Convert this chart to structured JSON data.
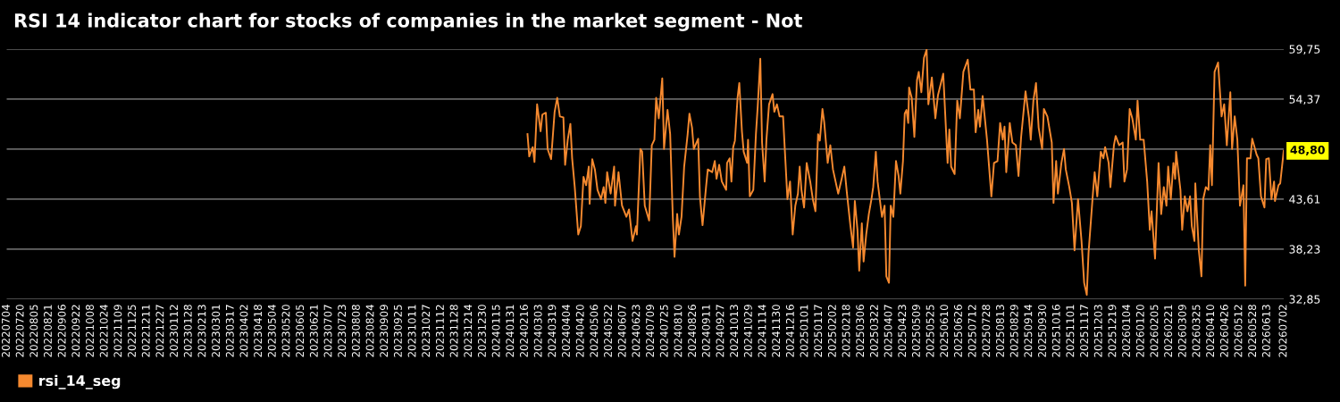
{
  "chart_data": {
    "type": "line",
    "title": "RSI 14 indicator chart for stocks of companies in the market segment - Not",
    "series": [
      {
        "name": "rsi_14_seg",
        "color": "#f5892f",
        "x": [
          "2024-02-19",
          "2024-02-21",
          "2024-02-25",
          "2024-02-27",
          "2024-03-01",
          "2024-03-05",
          "2024-03-07",
          "2024-03-11",
          "2024-03-13",
          "2024-03-17",
          "2024-03-21",
          "2024-03-24",
          "2024-03-27",
          "2024-03-31",
          "2024-04-02",
          "2024-04-05",
          "2024-04-08",
          "2024-04-10",
          "2024-04-13",
          "2024-04-17",
          "2024-04-20",
          "2024-04-23",
          "2024-04-26",
          "2024-04-29",
          "2024-04-30",
          "2024-05-03",
          "2024-05-06",
          "2024-05-09",
          "2024-05-13",
          "2024-05-16",
          "2024-05-18",
          "2024-05-20",
          "2024-05-24",
          "2024-05-28",
          "2024-05-29",
          "2024-06-02",
          "2024-06-06",
          "2024-06-11",
          "2024-06-14",
          "2024-06-18",
          "2024-06-22",
          "2024-06-23",
          "2024-06-27",
          "2024-06-29",
          "2024-07-02",
          "2024-07-07",
          "2024-07-10",
          "2024-07-13",
          "2024-07-15",
          "2024-07-18",
          "2024-07-22",
          "2024-07-24",
          "2024-07-28",
          "2024-07-31",
          "2024-08-03",
          "2024-08-05",
          "2024-08-08",
          "2024-08-10",
          "2024-08-13",
          "2024-08-16",
          "2024-08-20",
          "2024-08-22",
          "2024-08-25",
          "2024-08-27",
          "2024-09-01",
          "2024-09-03",
          "2024-09-06",
          "2024-09-10",
          "2024-09-12",
          "2024-09-17",
          "2024-09-20",
          "2024-09-22",
          "2024-09-25",
          "2024-09-28",
          "2024-10-03",
          "2024-10-04",
          "2024-10-07",
          "2024-10-09",
          "2024-10-11",
          "2024-10-13",
          "2024-10-16",
          "2024-10-18",
          "2024-10-21",
          "2024-10-23",
          "2024-10-27",
          "2024-10-28",
          "2024-10-30",
          "2024-11-03",
          "2024-11-06",
          "2024-11-08",
          "2024-11-11",
          "2024-11-13",
          "2024-11-16",
          "2024-11-18",
          "2024-11-21",
          "2024-11-25",
          "2024-11-27",
          "2024-11-30",
          "2024-12-03",
          "2024-12-07",
          "2024-12-12",
          "2024-12-15",
          "2024-12-18",
          "2024-12-21",
          "2024-12-24",
          "2024-12-26",
          "2024-12-28",
          "2024-12-31",
          "2025-01-03",
          "2025-01-07",
          "2025-01-10",
          "2025-01-13",
          "2025-01-16",
          "2025-01-18",
          "2025-01-21",
          "2025-01-23",
          "2025-01-27",
          "2025-01-30",
          "2025-02-02",
          "2025-02-08",
          "2025-02-12",
          "2025-02-15",
          "2025-02-18",
          "2025-02-22",
          "2025-02-25",
          "2025-02-27",
          "2025-03-02",
          "2025-03-04",
          "2025-03-07",
          "2025-03-09",
          "2025-03-12",
          "2025-03-15",
          "2025-03-18",
          "2025-03-20",
          "2025-03-23",
          "2025-03-25",
          "2025-03-30",
          "2025-04-02",
          "2025-04-04",
          "2025-04-07",
          "2025-04-09",
          "2025-04-12",
          "2025-04-15",
          "2025-04-18",
          "2025-04-20",
          "2025-04-23",
          "2025-04-25",
          "2025-04-27",
          "2025-04-29",
          "2025-04-30",
          "2025-05-03",
          "2025-05-06",
          "2025-05-09",
          "2025-05-11",
          "2025-05-14",
          "2025-05-17",
          "2025-05-20",
          "2025-05-22",
          "2025-05-26",
          "2025-05-30",
          "2025-06-02",
          "2025-06-08",
          "2025-06-13",
          "2025-06-15",
          "2025-06-17",
          "2025-06-21",
          "2025-06-24",
          "2025-06-27",
          "2025-07-01",
          "2025-07-06",
          "2025-07-09",
          "2025-07-13",
          "2025-07-15",
          "2025-07-18",
          "2025-07-20",
          "2025-07-23",
          "2025-07-28",
          "2025-08-02",
          "2025-08-05",
          "2025-08-09",
          "2025-08-12",
          "2025-08-15",
          "2025-08-17",
          "2025-08-19",
          "2025-08-23",
          "2025-08-26",
          "2025-08-30",
          "2025-09-02",
          "2025-09-05",
          "2025-09-10",
          "2025-09-14",
          "2025-09-16",
          "2025-09-19",
          "2025-09-22",
          "2025-09-25",
          "2025-09-29",
          "2025-10-01",
          "2025-10-05",
          "2025-10-10",
          "2025-10-12",
          "2025-10-15",
          "2025-10-17",
          "2025-10-21",
          "2025-10-24",
          "2025-10-26",
          "2025-10-30",
          "2025-11-02",
          "2025-11-05",
          "2025-11-09",
          "2025-11-13",
          "2025-11-16",
          "2025-11-19",
          "2025-11-21",
          "2025-11-26",
          "2025-11-28",
          "2025-12-01",
          "2025-12-05",
          "2025-12-08",
          "2025-12-10",
          "2025-12-14",
          "2025-12-16",
          "2025-12-20",
          "2025-12-22",
          "2025-12-26",
          "2025-12-30",
          "2026-01-01",
          "2026-01-04",
          "2026-01-07",
          "2026-01-10",
          "2026-01-14",
          "2026-01-16",
          "2026-01-19",
          "2026-01-23",
          "2026-01-27",
          "2026-01-30",
          "2026-02-01",
          "2026-02-05",
          "2026-02-08",
          "2026-02-09",
          "2026-02-12",
          "2026-02-15",
          "2026-02-18",
          "2026-02-20",
          "2026-02-23",
          "2026-02-26",
          "2026-02-28",
          "2026-03-01",
          "2026-03-06",
          "2026-03-08",
          "2026-03-11",
          "2026-03-14",
          "2026-03-17",
          "2026-03-19",
          "2026-03-22",
          "2026-03-23",
          "2026-03-27",
          "2026-03-30",
          "2026-04-01",
          "2026-04-04",
          "2026-04-07",
          "2026-04-09",
          "2026-04-11",
          "2026-04-14",
          "2026-04-18",
          "2026-04-22",
          "2026-04-25",
          "2026-04-28",
          "2026-05-02",
          "2026-05-04",
          "2026-05-07",
          "2026-05-10",
          "2026-05-13",
          "2026-05-17",
          "2026-05-19",
          "2026-05-21",
          "2026-05-25",
          "2026-05-27",
          "2026-06-01",
          "2026-06-03",
          "2026-06-06",
          "2026-06-10",
          "2026-06-12",
          "2026-06-15",
          "2026-06-18",
          "2026-06-21",
          "2026-06-22",
          "2026-06-26",
          "2026-06-28",
          "2026-07-02"
        ],
        "values": [
          50.6,
          48.2,
          49.2,
          47.6,
          53.8,
          50.9,
          52.7,
          52.9,
          49.0,
          47.9,
          53.0,
          54.5,
          52.5,
          52.4,
          47.3,
          50.0,
          51.7,
          48.0,
          44.9,
          39.8,
          40.7,
          46.0,
          45.1,
          47.1,
          43.1,
          47.9,
          46.8,
          44.6,
          43.6,
          44.9,
          43.2,
          46.5,
          44.2,
          47.1,
          42.9,
          46.5,
          42.9,
          41.7,
          42.5,
          39.1,
          40.7,
          39.8,
          49.0,
          48.7,
          42.9,
          41.3,
          49.4,
          50.0,
          54.5,
          52.3,
          56.6,
          49.0,
          53.2,
          50.6,
          41.7,
          37.4,
          42.0,
          39.8,
          41.7,
          47.1,
          50.6,
          52.8,
          51.3,
          49.0,
          50.1,
          43.9,
          40.8,
          44.9,
          46.8,
          46.5,
          47.7,
          45.8,
          47.3,
          45.5,
          44.6,
          47.5,
          48.0,
          45.5,
          49.2,
          49.9,
          54.5,
          56.1,
          50.9,
          48.7,
          47.5,
          50.0,
          43.9,
          44.6,
          50.6,
          53.5,
          58.7,
          49.7,
          45.5,
          50.0,
          53.8,
          54.9,
          53.0,
          53.8,
          52.5,
          52.5,
          43.6,
          45.5,
          39.8,
          42.9,
          44.2,
          47.1,
          44.6,
          42.7,
          47.5,
          45.5,
          43.6,
          42.3,
          50.6,
          49.9,
          53.3,
          51.9,
          47.5,
          49.4,
          46.8,
          44.2,
          45.8,
          47.1,
          44.2,
          40.7,
          38.4,
          43.4,
          40.3,
          35.9,
          41.0,
          36.9,
          39.8,
          42.0,
          43.6,
          44.9,
          48.7,
          45.5,
          41.7,
          42.9,
          35.3,
          34.6,
          42.9,
          41.7,
          47.7,
          46.1,
          44.2,
          47.7,
          52.8,
          53.2,
          51.8,
          55.6,
          54.5,
          50.3,
          56.4,
          57.3,
          55.1,
          58.8,
          59.7,
          53.8,
          56.7,
          52.3,
          54.8,
          57.1,
          47.5,
          51.1,
          47.1,
          46.3,
          54.2,
          52.3,
          57.3,
          58.6,
          55.4,
          55.4,
          50.8,
          53.2,
          51.4,
          54.7,
          50.0,
          43.9,
          47.5,
          47.7,
          51.8,
          50.0,
          51.4,
          46.5,
          51.8,
          49.7,
          49.4,
          46.1,
          50.3,
          55.2,
          52.3,
          50.0,
          54.2,
          56.1,
          51.3,
          49.0,
          53.3,
          52.5,
          49.7,
          43.2,
          47.7,
          44.2,
          47.5,
          49.0,
          46.8,
          44.9,
          43.2,
          38.1,
          43.6,
          39.1,
          34.6,
          33.3,
          37.8,
          44.2,
          46.5,
          43.9,
          48.7,
          48.0,
          49.2,
          47.5,
          44.9,
          49.4,
          50.4,
          49.4,
          49.7,
          45.5,
          46.8,
          53.3,
          52.3,
          50.0,
          54.2,
          50.0,
          50.0,
          45.5,
          40.3,
          42.3,
          37.2,
          44.9,
          47.5,
          42.0,
          44.9,
          42.9,
          47.1,
          43.6,
          47.5,
          45.8,
          48.7,
          44.6,
          40.3,
          43.9,
          42.3,
          43.9,
          40.7,
          39.1,
          45.3,
          38.1,
          35.3,
          43.6,
          44.9,
          44.6,
          49.4,
          45.1,
          57.3,
          58.3,
          52.5,
          53.8,
          49.4,
          55.1,
          49.0,
          52.5,
          50.0,
          42.9,
          45.1,
          34.3,
          48.0,
          48.0,
          50.1,
          48.4,
          48.0,
          43.9,
          42.7,
          47.9,
          48.0,
          43.6,
          45.5,
          43.4,
          45.1,
          45.3,
          48.8
        ]
      }
    ],
    "xlim": [
      "2022-07-04",
      "2026-07-02"
    ],
    "xticks": [
      {
        "value": "2022-07-04",
        "label": "20220704"
      },
      {
        "value": "2022-07-20",
        "label": "20220720"
      },
      {
        "value": "2022-08-05",
        "label": "20220805"
      },
      {
        "value": "2022-08-21",
        "label": "20220821"
      },
      {
        "value": "2022-09-06",
        "label": "20220906"
      },
      {
        "value": "2022-09-22",
        "label": "20220922"
      },
      {
        "value": "2022-10-08",
        "label": "20221008"
      },
      {
        "value": "2022-10-24",
        "label": "20221024"
      },
      {
        "value": "2022-11-09",
        "label": "20221109"
      },
      {
        "value": "2022-11-25",
        "label": "20221125"
      },
      {
        "value": "2022-12-11",
        "label": "20221211"
      },
      {
        "value": "2022-12-27",
        "label": "20221227"
      },
      {
        "value": "2023-01-12",
        "label": "20230112"
      },
      {
        "value": "2023-01-28",
        "label": "20230128"
      },
      {
        "value": "2023-02-13",
        "label": "20230213"
      },
      {
        "value": "2023-03-01",
        "label": "20230301"
      },
      {
        "value": "2023-03-17",
        "label": "20230317"
      },
      {
        "value": "2023-04-02",
        "label": "20230402"
      },
      {
        "value": "2023-04-18",
        "label": "20230418"
      },
      {
        "value": "2023-05-04",
        "label": "20230504"
      },
      {
        "value": "2023-05-20",
        "label": "20230520"
      },
      {
        "value": "2023-06-05",
        "label": "20230605"
      },
      {
        "value": "2023-06-21",
        "label": "20230621"
      },
      {
        "value": "2023-07-07",
        "label": "20230707"
      },
      {
        "value": "2023-07-23",
        "label": "20230723"
      },
      {
        "value": "2023-08-08",
        "label": "20230808"
      },
      {
        "value": "2023-08-24",
        "label": "20230824"
      },
      {
        "value": "2023-09-09",
        "label": "20230909"
      },
      {
        "value": "2023-09-25",
        "label": "20230925"
      },
      {
        "value": "2023-10-11",
        "label": "20231011"
      },
      {
        "value": "2023-10-27",
        "label": "20231027"
      },
      {
        "value": "2023-11-12",
        "label": "20231112"
      },
      {
        "value": "2023-11-28",
        "label": "20231128"
      },
      {
        "value": "2023-12-14",
        "label": "20231214"
      },
      {
        "value": "2023-12-30",
        "label": "20231230"
      },
      {
        "value": "2024-01-15",
        "label": "20240115"
      },
      {
        "value": "2024-01-31",
        "label": "20240131"
      },
      {
        "value": "2024-02-16",
        "label": "20240216"
      },
      {
        "value": "2024-03-03",
        "label": "20240303"
      },
      {
        "value": "2024-03-19",
        "label": "20240319"
      },
      {
        "value": "2024-04-04",
        "label": "20240404"
      },
      {
        "value": "2024-04-20",
        "label": "20240420"
      },
      {
        "value": "2024-05-06",
        "label": "20240506"
      },
      {
        "value": "2024-05-22",
        "label": "20240522"
      },
      {
        "value": "2024-06-07",
        "label": "20240607"
      },
      {
        "value": "2024-06-23",
        "label": "20240623"
      },
      {
        "value": "2024-07-09",
        "label": "20240709"
      },
      {
        "value": "2024-07-25",
        "label": "20240725"
      },
      {
        "value": "2024-08-10",
        "label": "20240810"
      },
      {
        "value": "2024-08-26",
        "label": "20240826"
      },
      {
        "value": "2024-09-11",
        "label": "20240911"
      },
      {
        "value": "2024-09-27",
        "label": "20240927"
      },
      {
        "value": "2024-10-13",
        "label": "20241013"
      },
      {
        "value": "2024-10-29",
        "label": "20241029"
      },
      {
        "value": "2024-11-14",
        "label": "20241114"
      },
      {
        "value": "2024-11-30",
        "label": "20241130"
      },
      {
        "value": "2024-12-16",
        "label": "20241216"
      },
      {
        "value": "2025-01-01",
        "label": "20250101"
      },
      {
        "value": "2025-01-17",
        "label": "20250117"
      },
      {
        "value": "2025-02-02",
        "label": "20250202"
      },
      {
        "value": "2025-02-18",
        "label": "20250218"
      },
      {
        "value": "2025-03-06",
        "label": "20250306"
      },
      {
        "value": "2025-03-22",
        "label": "20250322"
      },
      {
        "value": "2025-04-07",
        "label": "20250407"
      },
      {
        "value": "2025-04-23",
        "label": "20250423"
      },
      {
        "value": "2025-05-09",
        "label": "20250509"
      },
      {
        "value": "2025-05-25",
        "label": "20250525"
      },
      {
        "value": "2025-06-10",
        "label": "20250610"
      },
      {
        "value": "2025-06-26",
        "label": "20250626"
      },
      {
        "value": "2025-07-12",
        "label": "20250712"
      },
      {
        "value": "2025-07-28",
        "label": "20250728"
      },
      {
        "value": "2025-08-13",
        "label": "20250813"
      },
      {
        "value": "2025-08-29",
        "label": "20250829"
      },
      {
        "value": "2025-09-14",
        "label": "20250914"
      },
      {
        "value": "2025-09-30",
        "label": "20250930"
      },
      {
        "value": "2025-10-16",
        "label": "20251016"
      },
      {
        "value": "2025-11-01",
        "label": "20251101"
      },
      {
        "value": "2025-11-17",
        "label": "20251117"
      },
      {
        "value": "2025-12-03",
        "label": "20251203"
      },
      {
        "value": "2025-12-19",
        "label": "20251219"
      },
      {
        "value": "2026-01-04",
        "label": "20260104"
      },
      {
        "value": "2026-01-20",
        "label": "20260120"
      },
      {
        "value": "2026-02-05",
        "label": "20260205"
      },
      {
        "value": "2026-02-21",
        "label": "20260221"
      },
      {
        "value": "2026-03-09",
        "label": "20260309"
      },
      {
        "value": "2026-03-25",
        "label": "20260325"
      },
      {
        "value": "2026-04-10",
        "label": "20260410"
      },
      {
        "value": "2026-04-26",
        "label": "20260426"
      },
      {
        "value": "2026-05-12",
        "label": "20260512"
      },
      {
        "value": "2026-05-28",
        "label": "20260528"
      },
      {
        "value": "2026-06-13",
        "label": "20260613"
      },
      {
        "value": "2026-07-02",
        "label": "20260702"
      }
    ],
    "ylim": [
      32.85,
      59.75
    ],
    "yticks": [
      {
        "value": 32.85,
        "label": "32,85"
      },
      {
        "value": 38.23,
        "label": "38,23"
      },
      {
        "value": 43.61,
        "label": "43,61"
      },
      {
        "value": 48.99,
        "label": null
      },
      {
        "value": 54.37,
        "label": "54,37"
      },
      {
        "value": 59.75,
        "label": "59,75"
      }
    ],
    "annotations": [
      {
        "text": "48,80",
        "x": "2026-07-02",
        "y": 48.8
      }
    ],
    "grid": "y",
    "legend": "bottom left",
    "marker": "none",
    "line_style": "solid"
  }
}
